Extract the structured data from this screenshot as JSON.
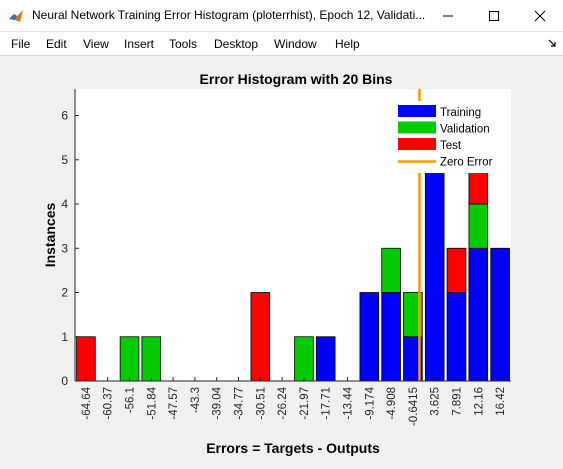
{
  "window": {
    "title": "Neural Network Training Error Histogram (ploterrhist), Epoch 12, Validati...",
    "icon": "matlab-icon"
  },
  "controls": {
    "minimize": "minimize-icon",
    "maximize": "maximize-icon",
    "close": "close-icon"
  },
  "menu": {
    "items": [
      "File",
      "Edit",
      "View",
      "Insert",
      "Tools",
      "Desktop",
      "Window",
      "Help"
    ],
    "overflow_icon": "dock-arrow-icon"
  },
  "chart_data": {
    "type": "bar",
    "stacked": true,
    "title": "Error Histogram with 20 Bins",
    "xlabel": "Errors = Targets - Outputs",
    "ylabel": "Instances",
    "ylim": [
      0,
      6.6
    ],
    "yticks": [
      0,
      1,
      2,
      3,
      4,
      5,
      6
    ],
    "grid": false,
    "legend_position": "top-right",
    "categories": [
      "-64.64",
      "-60.37",
      "-56.1",
      "-51.84",
      "-47.57",
      "-43.3",
      "-39.04",
      "-34.77",
      "-30.51",
      "-26.24",
      "-21.97",
      "-17.71",
      "-13.44",
      "-9.174",
      "-4.908",
      "-0.6415",
      "3.625",
      "7.891",
      "12.16",
      "16.42"
    ],
    "series": [
      {
        "name": "Training",
        "color": "#0000ff",
        "values": [
          0,
          0,
          0,
          0,
          0,
          0,
          0,
          0,
          0,
          0,
          0,
          1,
          0,
          2,
          2,
          1,
          5,
          2,
          3,
          3
        ]
      },
      {
        "name": "Validation",
        "color": "#00cc00",
        "values": [
          0,
          0,
          1,
          1,
          0,
          0,
          0,
          0,
          0,
          0,
          1,
          0,
          0,
          0,
          1,
          1,
          0,
          0,
          1,
          0
        ]
      },
      {
        "name": "Test",
        "color": "#ff0000",
        "values": [
          1,
          0,
          0,
          0,
          0,
          0,
          0,
          0,
          2,
          0,
          0,
          0,
          0,
          0,
          0,
          0,
          0,
          1,
          1,
          0
        ]
      }
    ],
    "zero_error": {
      "name": "Zero Error",
      "color": "#ff9900",
      "x_bin_index": 15.3
    }
  }
}
